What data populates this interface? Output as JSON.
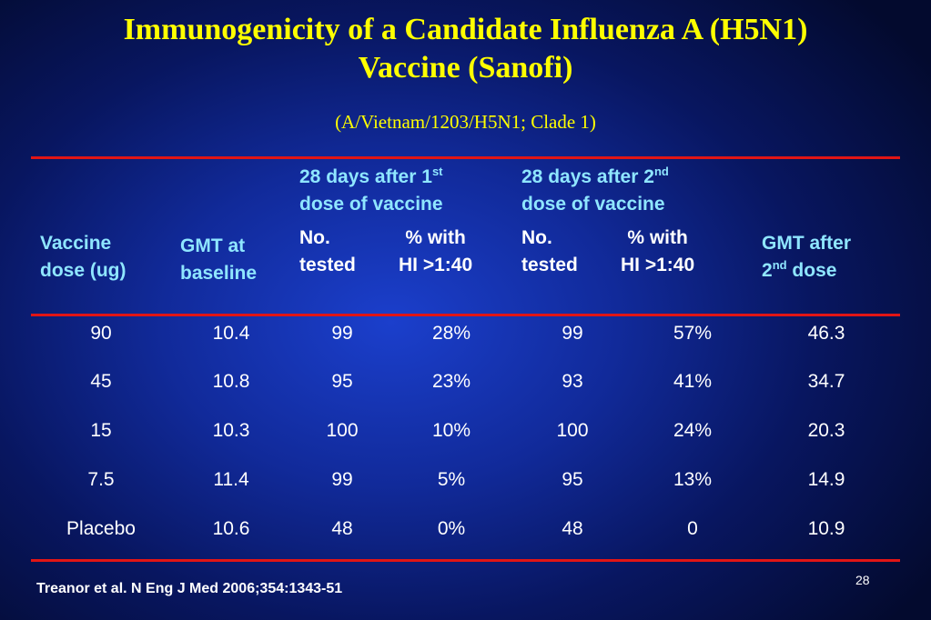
{
  "title_line1": "Immunogenicity of a Candidate Influenza A (H5N1)",
  "title_line2": "Vaccine (Sanofi)",
  "subtitle": "(A/Vietnam/1203/H5N1; Clade 1)",
  "headers": {
    "dose1_a": "28 days after 1",
    "dose1_sup": "st",
    "dose1_b": "dose of vaccine",
    "dose2_a": "28 days after 2",
    "dose2_sup": "nd",
    "dose2_b": "dose of vaccine",
    "vaccine_dose_1": "Vaccine",
    "vaccine_dose_2": "dose (ug)",
    "gmt_baseline_1": "GMT at",
    "gmt_baseline_2": "baseline",
    "no_1": "No.",
    "no_2": "tested",
    "pct_1": "% with",
    "pct_2": "HI >1:40",
    "no2_1": "No.",
    "no2_2": "tested",
    "pct2_1": "% with",
    "pct2_2": "HI >1:40",
    "gmt_after_1": "GMT after",
    "gmt_after_2a": "2",
    "gmt_after_sup": "nd",
    "gmt_after_2b": " dose"
  },
  "rows": [
    [
      "90",
      "10.4",
      "99",
      "28%",
      "99",
      "57%",
      "46.3"
    ],
    [
      "45",
      "10.8",
      "95",
      "23%",
      "93",
      "41%",
      "34.7"
    ],
    [
      "15",
      "10.3",
      "100",
      "10%",
      "100",
      "24%",
      "20.3"
    ],
    [
      "7.5",
      "11.4",
      "99",
      "5%",
      "95",
      "13%",
      "14.9"
    ],
    [
      "Placebo",
      "10.6",
      "48",
      "0%",
      "48",
      "0",
      "10.9"
    ]
  ],
  "page_number": "28",
  "citation": "Treanor et al. N Eng J Med 2006;354:1343-51",
  "colors": {
    "title": "#ffff00",
    "header_cyan": "#8fe6ff",
    "rule": "#e11515"
  }
}
